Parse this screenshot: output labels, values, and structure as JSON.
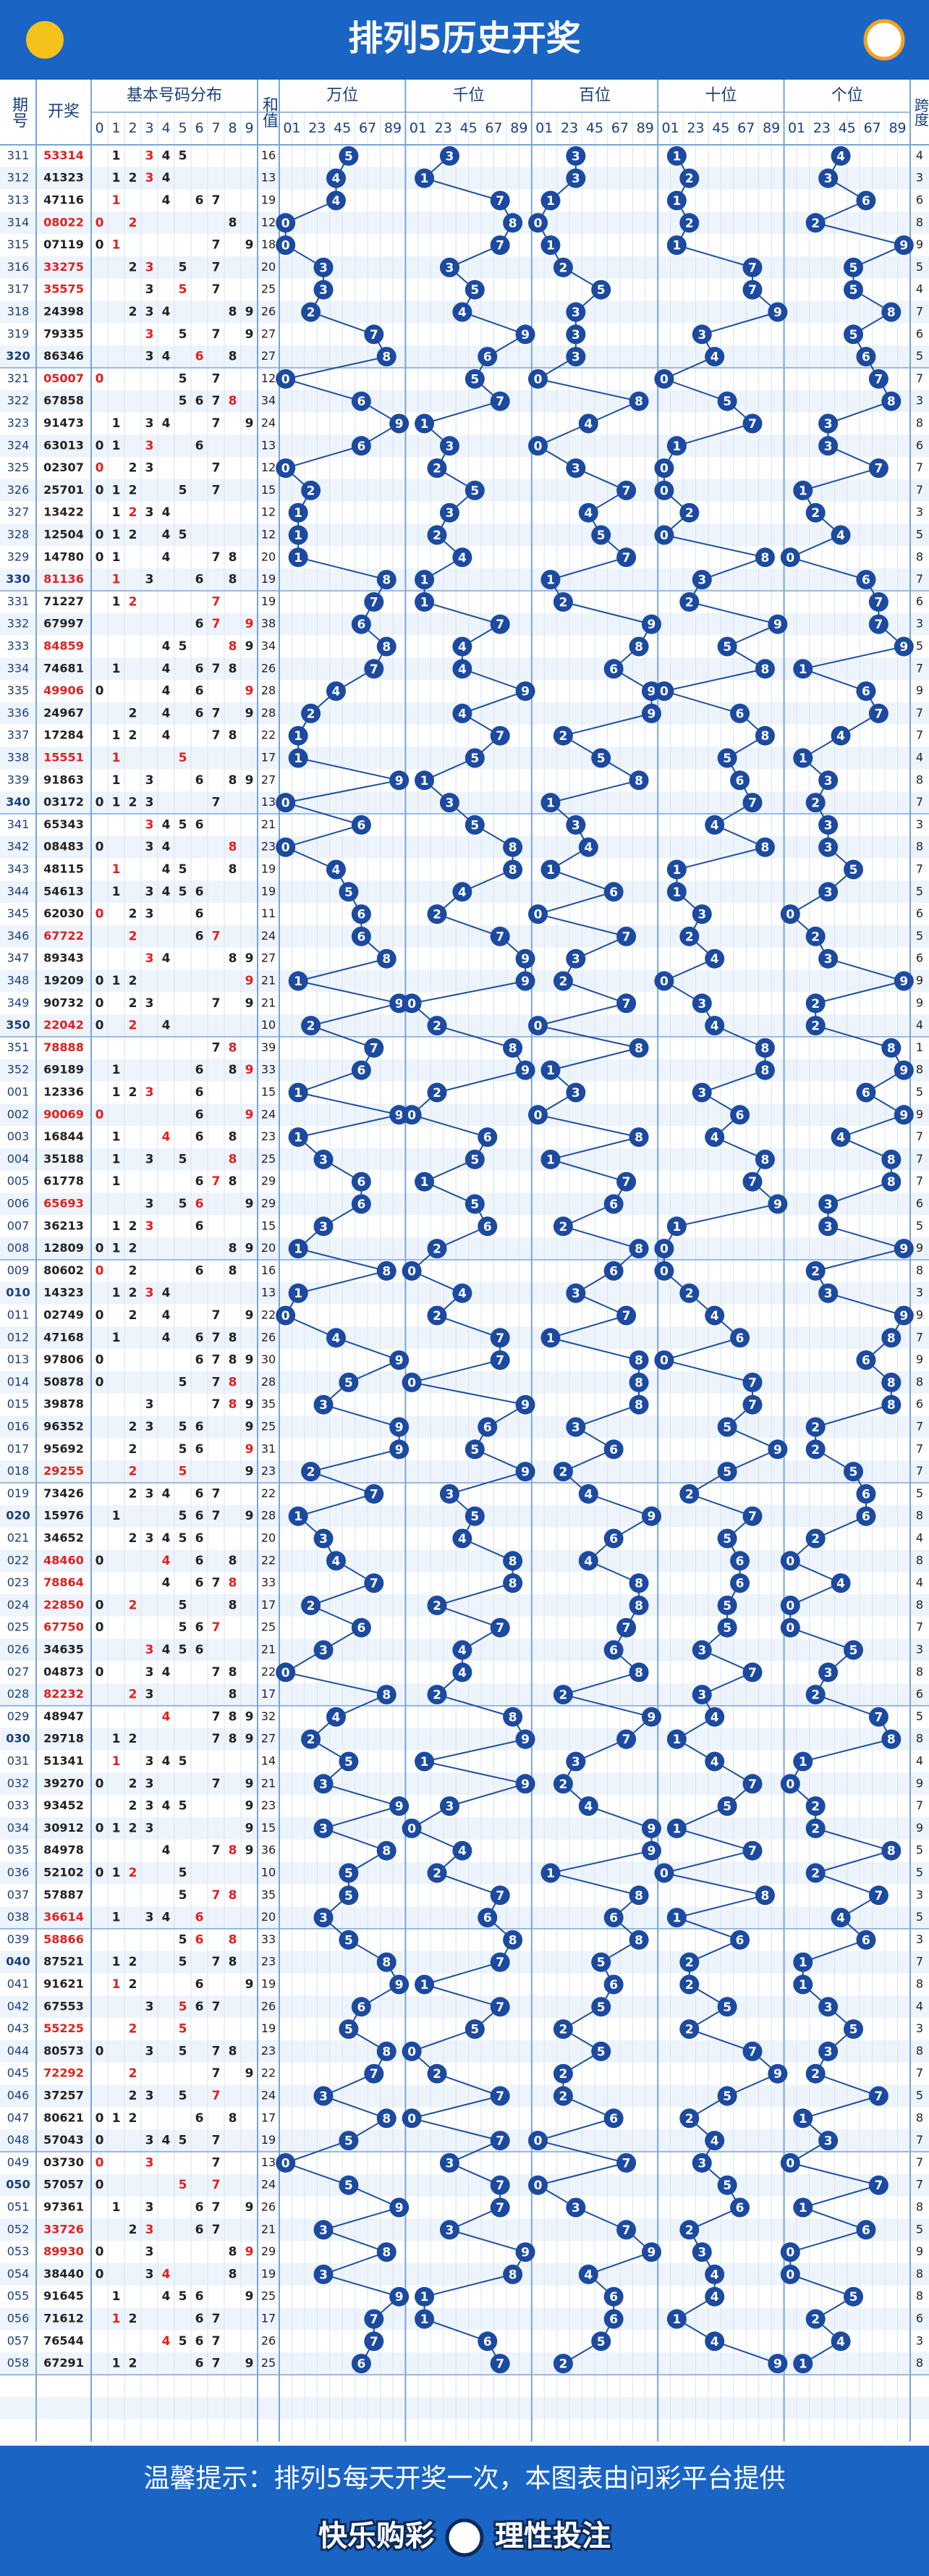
{
  "header": {
    "title": "排列5历史开奖"
  },
  "table": {
    "headers": {
      "period": "期号",
      "draw": "开奖",
      "distribution": "基本号码分布",
      "sum": "和值",
      "positions": [
        "万位",
        "千位",
        "百位",
        "十位",
        "个位"
      ],
      "span": "跨度",
      "digits": [
        "0",
        "1",
        "2",
        "3",
        "4",
        "5",
        "6",
        "7",
        "8",
        "9"
      ],
      "pairs": [
        "01",
        "23",
        "45",
        "67",
        "89"
      ]
    },
    "rows": [
      [
        "311",
        "53314",
        16,
        4,
        true
      ],
      [
        "312",
        "41323",
        13,
        3,
        false
      ],
      [
        "313",
        "47116",
        19,
        6,
        false
      ],
      [
        "314",
        "08022",
        12,
        8,
        true
      ],
      [
        "315",
        "07119",
        18,
        9,
        false
      ],
      [
        "316",
        "33275",
        20,
        5,
        true
      ],
      [
        "317",
        "35575",
        25,
        4,
        true
      ],
      [
        "318",
        "24398",
        26,
        7,
        false
      ],
      [
        "319",
        "79335",
        27,
        6,
        false
      ],
      [
        "320",
        "86346",
        27,
        5,
        false
      ],
      [
        "321",
        "05007",
        12,
        7,
        true
      ],
      [
        "322",
        "67858",
        34,
        3,
        false
      ],
      [
        "323",
        "91473",
        24,
        8,
        false
      ],
      [
        "324",
        "63013",
        13,
        6,
        false
      ],
      [
        "325",
        "02307",
        12,
        7,
        false
      ],
      [
        "326",
        "25701",
        15,
        7,
        false
      ],
      [
        "327",
        "13422",
        12,
        3,
        false
      ],
      [
        "328",
        "12504",
        12,
        5,
        false
      ],
      [
        "329",
        "14780",
        20,
        8,
        false
      ],
      [
        "330",
        "81136",
        19,
        7,
        true
      ],
      [
        "331",
        "71227",
        19,
        6,
        false
      ],
      [
        "332",
        "67997",
        38,
        3,
        false
      ],
      [
        "333",
        "84859",
        34,
        5,
        true
      ],
      [
        "334",
        "74681",
        26,
        7,
        false
      ],
      [
        "335",
        "49906",
        28,
        9,
        true
      ],
      [
        "336",
        "24967",
        28,
        7,
        false
      ],
      [
        "337",
        "17284",
        22,
        7,
        false
      ],
      [
        "338",
        "15551",
        17,
        4,
        true
      ],
      [
        "339",
        "91863",
        27,
        8,
        false
      ],
      [
        "340",
        "03172",
        13,
        7,
        false
      ],
      [
        "341",
        "65343",
        21,
        3,
        false
      ],
      [
        "342",
        "08483",
        23,
        8,
        false
      ],
      [
        "343",
        "48115",
        19,
        7,
        false
      ],
      [
        "344",
        "54613",
        19,
        5,
        false
      ],
      [
        "345",
        "62030",
        11,
        6,
        false
      ],
      [
        "346",
        "67722",
        24,
        5,
        true
      ],
      [
        "347",
        "89343",
        27,
        6,
        false
      ],
      [
        "348",
        "19209",
        21,
        9,
        false
      ],
      [
        "349",
        "90732",
        21,
        9,
        false
      ],
      [
        "350",
        "22042",
        10,
        4,
        true
      ],
      [
        "351",
        "78888",
        39,
        1,
        true
      ],
      [
        "352",
        "69189",
        33,
        8,
        false
      ],
      [
        "001",
        "12336",
        15,
        5,
        false
      ],
      [
        "002",
        "90069",
        24,
        9,
        true
      ],
      [
        "003",
        "16844",
        23,
        7,
        false
      ],
      [
        "004",
        "35188",
        25,
        7,
        false
      ],
      [
        "005",
        "61778",
        29,
        7,
        false
      ],
      [
        "006",
        "65693",
        29,
        6,
        true
      ],
      [
        "007",
        "36213",
        15,
        5,
        false
      ],
      [
        "008",
        "12809",
        20,
        9,
        false
      ],
      [
        "009",
        "80602",
        16,
        8,
        false
      ],
      [
        "010",
        "14323",
        13,
        3,
        false
      ],
      [
        "011",
        "02749",
        22,
        9,
        false
      ],
      [
        "012",
        "47168",
        26,
        7,
        false
      ],
      [
        "013",
        "97806",
        30,
        9,
        false
      ],
      [
        "014",
        "50878",
        28,
        8,
        false
      ],
      [
        "015",
        "39878",
        35,
        6,
        false
      ],
      [
        "016",
        "96352",
        25,
        7,
        false
      ],
      [
        "017",
        "95692",
        31,
        7,
        false
      ],
      [
        "018",
        "29255",
        23,
        7,
        true
      ],
      [
        "019",
        "73426",
        22,
        5,
        false
      ],
      [
        "020",
        "15976",
        28,
        8,
        false
      ],
      [
        "021",
        "34652",
        20,
        4,
        false
      ],
      [
        "022",
        "48460",
        22,
        8,
        true
      ],
      [
        "023",
        "78864",
        33,
        4,
        true
      ],
      [
        "024",
        "22850",
        17,
        8,
        true
      ],
      [
        "025",
        "67750",
        25,
        7,
        true
      ],
      [
        "026",
        "34635",
        21,
        3,
        false
      ],
      [
        "027",
        "04873",
        22,
        8,
        false
      ],
      [
        "028",
        "82232",
        17,
        6,
        true
      ],
      [
        "029",
        "48947",
        32,
        5,
        false
      ],
      [
        "030",
        "29718",
        27,
        8,
        false
      ],
      [
        "031",
        "51341",
        14,
        4,
        false
      ],
      [
        "032",
        "39270",
        21,
        9,
        false
      ],
      [
        "033",
        "93452",
        23,
        7,
        false
      ],
      [
        "034",
        "30912",
        15,
        9,
        false
      ],
      [
        "035",
        "84978",
        36,
        5,
        false
      ],
      [
        "036",
        "52102",
        10,
        5,
        false
      ],
      [
        "037",
        "57887",
        35,
        3,
        false
      ],
      [
        "038",
        "36614",
        20,
        5,
        true
      ],
      [
        "039",
        "58866",
        33,
        3,
        true
      ],
      [
        "040",
        "87521",
        23,
        7,
        false
      ],
      [
        "041",
        "91621",
        19,
        8,
        false
      ],
      [
        "042",
        "67553",
        26,
        4,
        false
      ],
      [
        "043",
        "55225",
        19,
        3,
        true
      ],
      [
        "044",
        "80573",
        23,
        8,
        false
      ],
      [
        "045",
        "72292",
        22,
        7,
        true
      ],
      [
        "046",
        "37257",
        24,
        5,
        false
      ],
      [
        "047",
        "80621",
        17,
        8,
        false
      ],
      [
        "048",
        "57043",
        19,
        7,
        false
      ],
      [
        "049",
        "03730",
        13,
        7,
        false
      ],
      [
        "050",
        "57057",
        24,
        7,
        false
      ],
      [
        "051",
        "97361",
        26,
        8,
        false
      ],
      [
        "052",
        "33726",
        21,
        5,
        true
      ],
      [
        "053",
        "89930",
        29,
        9,
        true
      ],
      [
        "054",
        "38440",
        19,
        8,
        false
      ],
      [
        "055",
        "91645",
        25,
        8,
        false
      ],
      [
        "056",
        "71612",
        17,
        6,
        false
      ],
      [
        "057",
        "76544",
        26,
        3,
        false
      ],
      [
        "058",
        "67291",
        25,
        8,
        false
      ]
    ]
  },
  "footer": {
    "notice": "温馨提示：排列5每天开奖一次，本图表由问彩平台提供",
    "slogan_left": "快乐购彩",
    "slogan_right": "理性投注"
  }
}
